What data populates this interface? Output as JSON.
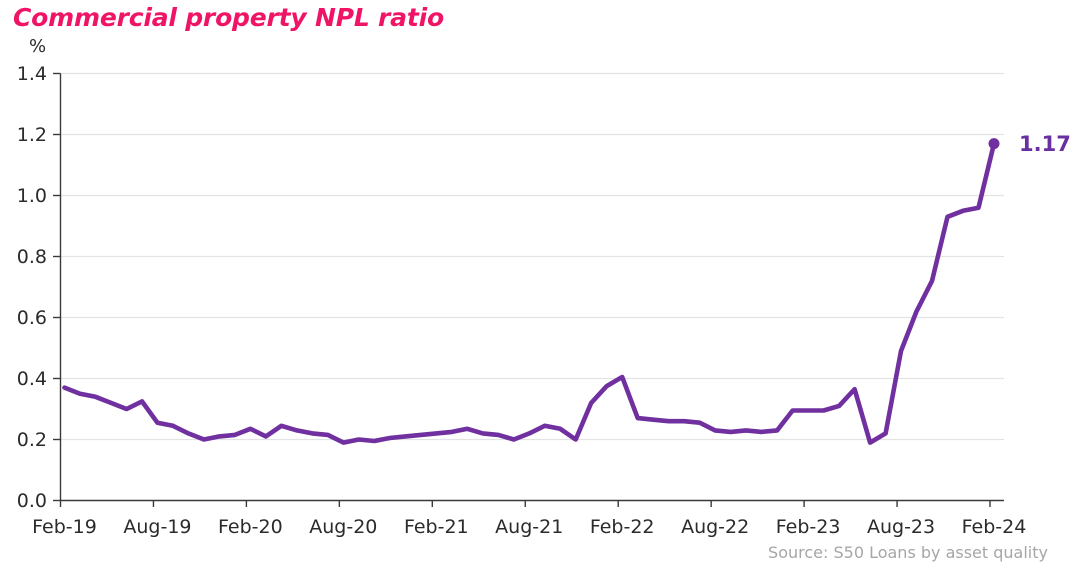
{
  "title": "Commercial property NPL ratio",
  "source_note": "Source:  S50 Loans by asset quality",
  "colors": {
    "title": "#F01466",
    "line": "#7030A0",
    "marker": "#7030A0",
    "end_label": "#6A2FA0",
    "axis_text": "#2B2B2B",
    "axis_line": "#3A3A3A",
    "gridline": "#E3E3E3",
    "source_text": "#A6A6A6",
    "background": "#FFFFFF"
  },
  "chart_data": {
    "type": "line",
    "title": "Commercial property NPL ratio",
    "ylabel": "%",
    "xlabel": "",
    "ylim": [
      0,
      1.4
    ],
    "ytick_step": 0.2,
    "ytick_labels": [
      "0.0",
      "0.2",
      "0.4",
      "0.6",
      "0.8",
      "1.0",
      "1.2",
      "1.4"
    ],
    "x_tick_every": 6,
    "x_tick_labels": [
      "Feb-19",
      "Aug-19",
      "Feb-20",
      "Aug-20",
      "Feb-21",
      "Aug-21",
      "Feb-22",
      "Aug-22",
      "Feb-23",
      "Aug-23",
      "Feb-24"
    ],
    "grid": "horizontal",
    "legend_position": "none",
    "end_point_label": "1.17",
    "x": [
      "Feb-19",
      "Mar-19",
      "Apr-19",
      "May-19",
      "Jun-19",
      "Jul-19",
      "Aug-19",
      "Sep-19",
      "Oct-19",
      "Nov-19",
      "Dec-19",
      "Jan-20",
      "Feb-20",
      "Mar-20",
      "Apr-20",
      "May-20",
      "Jun-20",
      "Jul-20",
      "Aug-20",
      "Sep-20",
      "Oct-20",
      "Nov-20",
      "Dec-20",
      "Jan-21",
      "Feb-21",
      "Mar-21",
      "Apr-21",
      "May-21",
      "Jun-21",
      "Jul-21",
      "Aug-21",
      "Sep-21",
      "Oct-21",
      "Nov-21",
      "Dec-21",
      "Jan-22",
      "Feb-22",
      "Mar-22",
      "Apr-22",
      "May-22",
      "Jun-22",
      "Jul-22",
      "Aug-22",
      "Sep-22",
      "Oct-22",
      "Nov-22",
      "Dec-22",
      "Jan-23",
      "Feb-23",
      "Mar-23",
      "Apr-23",
      "May-23",
      "Jun-23",
      "Jul-23",
      "Aug-23",
      "Sep-23",
      "Oct-23",
      "Nov-23",
      "Dec-23",
      "Jan-24",
      "Feb-24"
    ],
    "series": [
      {
        "name": "Commercial property NPL ratio",
        "values": [
          0.37,
          0.35,
          0.34,
          0.32,
          0.3,
          0.325,
          0.255,
          0.245,
          0.22,
          0.2,
          0.21,
          0.215,
          0.235,
          0.21,
          0.245,
          0.23,
          0.22,
          0.215,
          0.19,
          0.2,
          0.195,
          0.205,
          0.21,
          0.215,
          0.22,
          0.225,
          0.235,
          0.22,
          0.215,
          0.2,
          0.22,
          0.245,
          0.235,
          0.2,
          0.32,
          0.375,
          0.405,
          0.27,
          0.265,
          0.26,
          0.26,
          0.255,
          0.23,
          0.225,
          0.23,
          0.225,
          0.23,
          0.295,
          0.295,
          0.295,
          0.31,
          0.365,
          0.19,
          0.22,
          0.49,
          0.62,
          0.72,
          0.93,
          0.95,
          0.96,
          1.17
        ]
      }
    ]
  }
}
